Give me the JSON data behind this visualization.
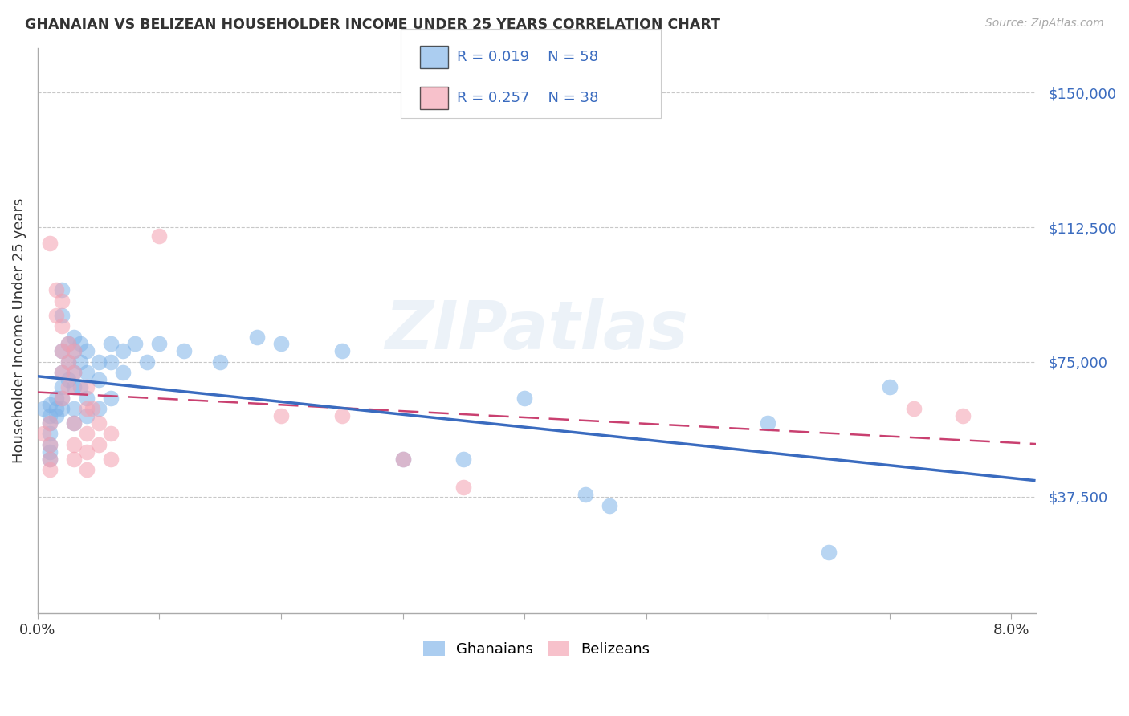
{
  "title": "GHANAIAN VS BELIZEAN HOUSEHOLDER INCOME UNDER 25 YEARS CORRELATION CHART",
  "source": "Source: ZipAtlas.com",
  "ylabel": "Householder Income Under 25 years",
  "ytick_values": [
    37500,
    75000,
    112500,
    150000
  ],
  "ymin": 5000,
  "ymax": 162500,
  "xmin": 0.0,
  "xmax": 0.082,
  "legend_entries": [
    {
      "label": "Ghanaians",
      "R": "0.019",
      "N": "58",
      "color": "#7fb3e8"
    },
    {
      "label": "Belizeans",
      "R": "0.257",
      "N": "38",
      "color": "#f4a0b0"
    }
  ],
  "watermark": "ZIPatlas",
  "background_color": "#ffffff",
  "grid_color": "#c8c8c8",
  "blue_color": "#3a6bbf",
  "pink_color": "#c94070",
  "text_color": "#333333",
  "ghanaian_points": [
    [
      0.0005,
      62000
    ],
    [
      0.001,
      63000
    ],
    [
      0.001,
      60000
    ],
    [
      0.001,
      58000
    ],
    [
      0.001,
      55000
    ],
    [
      0.001,
      52000
    ],
    [
      0.001,
      50000
    ],
    [
      0.001,
      48000
    ],
    [
      0.0015,
      65000
    ],
    [
      0.0015,
      62000
    ],
    [
      0.0015,
      60000
    ],
    [
      0.002,
      95000
    ],
    [
      0.002,
      88000
    ],
    [
      0.002,
      78000
    ],
    [
      0.002,
      72000
    ],
    [
      0.002,
      68000
    ],
    [
      0.002,
      65000
    ],
    [
      0.002,
      62000
    ],
    [
      0.0025,
      80000
    ],
    [
      0.0025,
      75000
    ],
    [
      0.0025,
      70000
    ],
    [
      0.003,
      82000
    ],
    [
      0.003,
      78000
    ],
    [
      0.003,
      72000
    ],
    [
      0.003,
      68000
    ],
    [
      0.003,
      62000
    ],
    [
      0.003,
      58000
    ],
    [
      0.0035,
      80000
    ],
    [
      0.0035,
      75000
    ],
    [
      0.0035,
      68000
    ],
    [
      0.004,
      78000
    ],
    [
      0.004,
      72000
    ],
    [
      0.004,
      65000
    ],
    [
      0.004,
      60000
    ],
    [
      0.005,
      75000
    ],
    [
      0.005,
      70000
    ],
    [
      0.005,
      62000
    ],
    [
      0.006,
      80000
    ],
    [
      0.006,
      75000
    ],
    [
      0.006,
      65000
    ],
    [
      0.007,
      78000
    ],
    [
      0.007,
      72000
    ],
    [
      0.008,
      80000
    ],
    [
      0.009,
      75000
    ],
    [
      0.01,
      80000
    ],
    [
      0.012,
      78000
    ],
    [
      0.015,
      75000
    ],
    [
      0.018,
      82000
    ],
    [
      0.02,
      80000
    ],
    [
      0.025,
      78000
    ],
    [
      0.03,
      48000
    ],
    [
      0.035,
      48000
    ],
    [
      0.04,
      65000
    ],
    [
      0.045,
      38000
    ],
    [
      0.047,
      35000
    ],
    [
      0.06,
      58000
    ],
    [
      0.065,
      22000
    ],
    [
      0.07,
      68000
    ]
  ],
  "belizean_points": [
    [
      0.0005,
      55000
    ],
    [
      0.001,
      108000
    ],
    [
      0.001,
      58000
    ],
    [
      0.001,
      52000
    ],
    [
      0.001,
      48000
    ],
    [
      0.001,
      45000
    ],
    [
      0.0015,
      95000
    ],
    [
      0.0015,
      88000
    ],
    [
      0.002,
      92000
    ],
    [
      0.002,
      85000
    ],
    [
      0.002,
      78000
    ],
    [
      0.002,
      72000
    ],
    [
      0.002,
      65000
    ],
    [
      0.0025,
      80000
    ],
    [
      0.0025,
      75000
    ],
    [
      0.0025,
      68000
    ],
    [
      0.003,
      78000
    ],
    [
      0.003,
      72000
    ],
    [
      0.003,
      58000
    ],
    [
      0.003,
      52000
    ],
    [
      0.003,
      48000
    ],
    [
      0.004,
      68000
    ],
    [
      0.004,
      62000
    ],
    [
      0.004,
      55000
    ],
    [
      0.004,
      50000
    ],
    [
      0.004,
      45000
    ],
    [
      0.0045,
      62000
    ],
    [
      0.005,
      58000
    ],
    [
      0.005,
      52000
    ],
    [
      0.006,
      55000
    ],
    [
      0.006,
      48000
    ],
    [
      0.01,
      110000
    ],
    [
      0.02,
      60000
    ],
    [
      0.025,
      60000
    ],
    [
      0.03,
      48000
    ],
    [
      0.035,
      40000
    ],
    [
      0.072,
      62000
    ],
    [
      0.076,
      60000
    ]
  ]
}
